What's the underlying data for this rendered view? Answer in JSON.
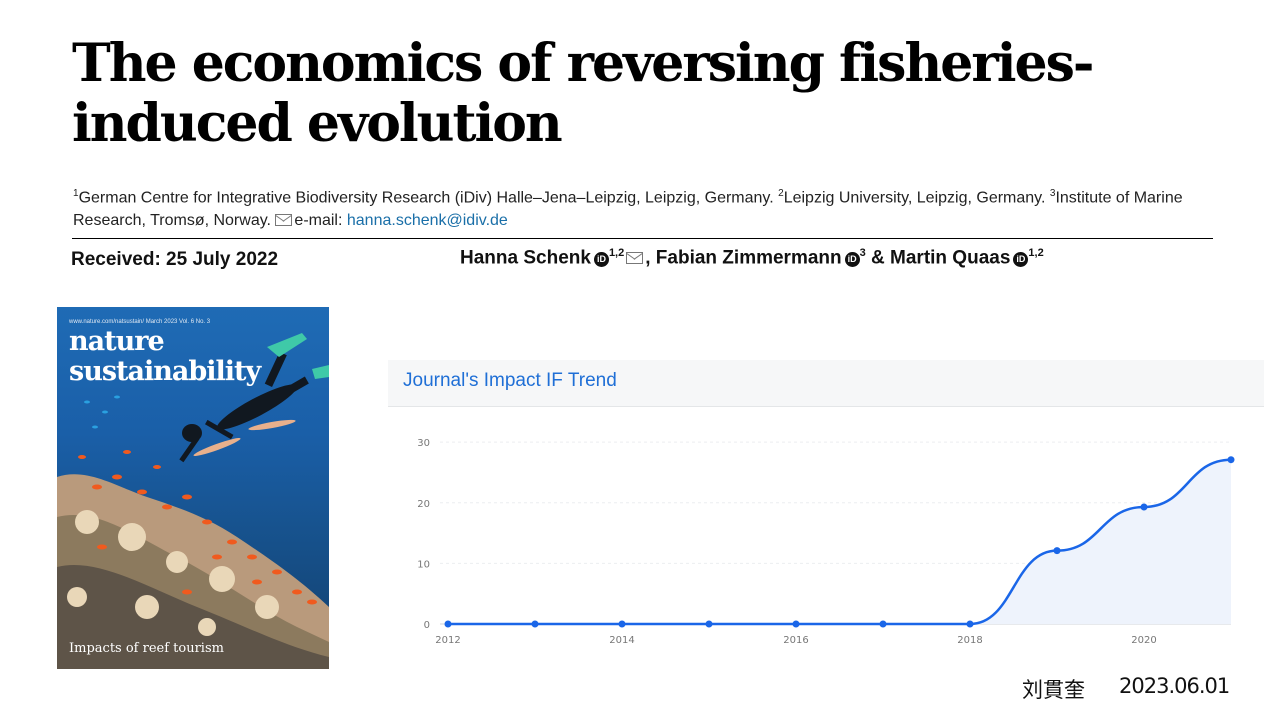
{
  "paper": {
    "title": "The economics of reversing fisheries-induced evolution",
    "affiliations": {
      "sup1": "1",
      "aff1": "German Centre for Integrative Biodiversity Research (iDiv) Halle–Jena–Leipzig, Leipzig, Germany. ",
      "sup2": "2",
      "aff2": "Leipzig University, Leipzig, Germany. ",
      "sup3": "3",
      "aff3": "Institute of Marine Research, Tromsø, Norway. ",
      "email_label": "e-mail: ",
      "email": "hanna.schenk@idiv.de"
    },
    "received": "Received: 25 July 2022",
    "authors": [
      {
        "name": "Hanna Schenk",
        "sup": "1,2"
      },
      {
        "name": "Fabian Zimmermann",
        "sup": "3"
      },
      {
        "name": "Martin Quaas",
        "sup": "1,2"
      }
    ],
    "orcid_glyph": "iD"
  },
  "cover": {
    "url": "www.nature.com/natsustain/ March 2023 Vol. 6 No. 3",
    "title_line1": "nature",
    "title_line2": "sustainability",
    "caption": "Impacts of reef tourism"
  },
  "chart_panel": {
    "title": "Journal's Impact IF Trend"
  },
  "chart_data": {
    "type": "area",
    "x": [
      2012,
      2013,
      2014,
      2015,
      2016,
      2017,
      2018,
      2019,
      2020,
      2021
    ],
    "values": [
      0,
      0,
      0,
      0,
      0,
      0,
      0,
      12.1,
      19.3,
      27.1
    ],
    "x_tick_labels": [
      "2012",
      "2014",
      "2016",
      "2018",
      "2020"
    ],
    "y_ticks": [
      0,
      10,
      20,
      30
    ],
    "ylim": [
      0,
      32
    ],
    "title": "",
    "xlabel": "",
    "ylabel": "",
    "line_color": "#1a66e8",
    "fill_color": "#eef3fc",
    "grid": true
  },
  "footer": {
    "signature": "刘貫奎",
    "date": "2023.06.01"
  }
}
